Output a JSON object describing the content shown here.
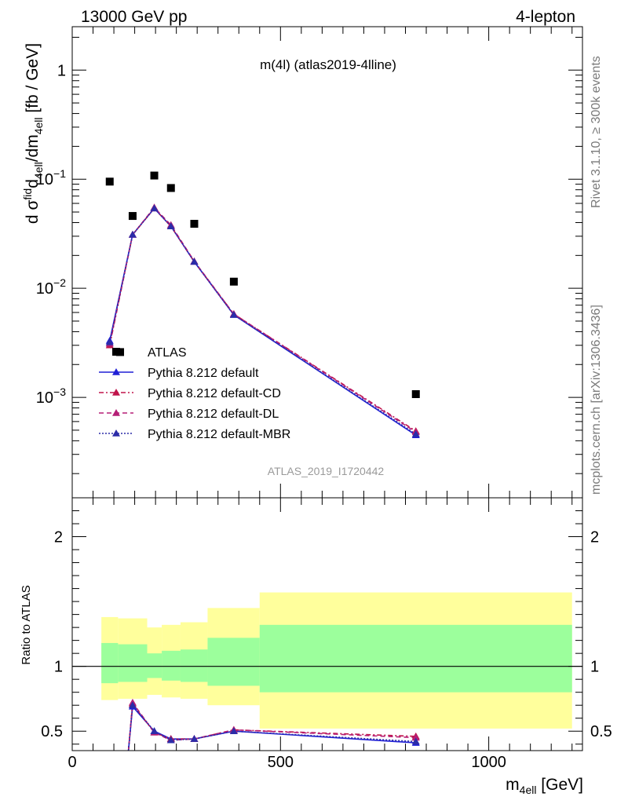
{
  "header": {
    "left": "13000 GeV pp",
    "right": "4-lepton",
    "side_top": "Rivet 3.1.10, ≥ 300k events",
    "side_bottom": "mcplots.cern.ch [arXiv:1306.3436]"
  },
  "chart_data": [
    {
      "type": "scatter",
      "panel": "main",
      "title": "m(4l) (atlas2019-4lline)",
      "ylabel": "d σᶠⁱᵈ₄ₑₗₗ/dm₄ₑₗₗ [fb / GeV]",
      "ylabel_parts": {
        "a": "d σ",
        "fid": "fid",
        "b": "/dm",
        "sub": "4ell",
        "c": " [fb / GeV]"
      },
      "watermark": "ATLAS_2019_I1720442",
      "yscale": "log",
      "xlim": [
        0,
        1225
      ],
      "ylim": [
        0.00012,
        2.5
      ],
      "y_ticks": [
        {
          "value": 1,
          "label": "1"
        },
        {
          "value": 0.1,
          "label": "10",
          "exp": "−1"
        },
        {
          "value": 0.01,
          "label": "10",
          "exp": "−2"
        },
        {
          "value": 0.001,
          "label": "10",
          "exp": "−3"
        }
      ],
      "legend_position": "lower-left",
      "series": [
        {
          "name": "ATLAS",
          "marker": "square",
          "color": "#000000",
          "x": [
            90,
            115,
            145,
            197,
            237,
            293,
            388,
            825
          ],
          "y": [
            0.095,
            0.0026,
            0.046,
            0.108,
            0.083,
            0.039,
            0.0115,
            0.00107
          ]
        },
        {
          "name": "Pythia 8.212 default",
          "marker": "triangle",
          "color": "#1f1fd6",
          "dash": "",
          "x": [
            90,
            145,
            197,
            237,
            293,
            388,
            825
          ],
          "y": [
            0.0033,
            0.031,
            0.054,
            0.037,
            0.0175,
            0.0057,
            0.00045
          ]
        },
        {
          "name": "Pythia 8.212 default-CD",
          "marker": "triangle",
          "color": "#c0144a",
          "dash": "6,3,2,3",
          "x": [
            90,
            145,
            197,
            237,
            293,
            388,
            825
          ],
          "y": [
            0.003,
            0.031,
            0.054,
            0.037,
            0.0175,
            0.0058,
            0.00049
          ]
        },
        {
          "name": "Pythia 8.212 default-DL",
          "marker": "triangle",
          "color": "#b51e76",
          "dash": "6,4",
          "x": [
            90,
            145,
            197,
            237,
            293,
            388,
            825
          ],
          "y": [
            0.0031,
            0.031,
            0.055,
            0.038,
            0.0177,
            0.0058,
            0.00048
          ]
        },
        {
          "name": "Pythia 8.212 default-MBR",
          "marker": "triangle",
          "color": "#2c2ca8",
          "dash": "2,2",
          "x": [
            90,
            145,
            197,
            237,
            293,
            388,
            825
          ],
          "y": [
            0.0032,
            0.031,
            0.054,
            0.037,
            0.0175,
            0.0057,
            0.00046
          ]
        }
      ]
    },
    {
      "type": "line",
      "panel": "ratio",
      "ylabel": "Ratio to ATLAS",
      "xlabel_main": "m",
      "xlabel_sub": "4ell",
      "xlabel_unit": " [GeV]",
      "xlim": [
        0,
        1225
      ],
      "ylim": [
        0.35,
        2.3
      ],
      "x_ticks": [
        {
          "value": 0,
          "label": "0"
        },
        {
          "value": 500,
          "label": "500"
        },
        {
          "value": 1000,
          "label": "1000"
        }
      ],
      "y_ticks": [
        {
          "value": 0.5,
          "label": "0.5"
        },
        {
          "value": 1,
          "label": "1"
        },
        {
          "value": 2,
          "label": "2"
        }
      ],
      "bands": [
        {
          "x0": 70,
          "x1": 110,
          "lo1": 0.87,
          "hi1": 1.18,
          "lo2": 0.74,
          "hi2": 1.38
        },
        {
          "x0": 110,
          "x1": 180,
          "lo1": 0.88,
          "hi1": 1.17,
          "lo2": 0.75,
          "hi2": 1.37
        },
        {
          "x0": 180,
          "x1": 215,
          "lo1": 0.91,
          "hi1": 1.1,
          "lo2": 0.78,
          "hi2": 1.3
        },
        {
          "x0": 215,
          "x1": 260,
          "lo1": 0.89,
          "hi1": 1.12,
          "lo2": 0.76,
          "hi2": 1.32
        },
        {
          "x0": 260,
          "x1": 325,
          "lo1": 0.88,
          "hi1": 1.13,
          "lo2": 0.75,
          "hi2": 1.34
        },
        {
          "x0": 325,
          "x1": 450,
          "lo1": 0.85,
          "hi1": 1.22,
          "lo2": 0.7,
          "hi2": 1.45
        },
        {
          "x0": 450,
          "x1": 1200,
          "lo1": 0.8,
          "hi1": 1.32,
          "lo2": 0.52,
          "hi2": 1.57
        }
      ],
      "series": [
        {
          "name": "Pythia 8.212 default",
          "color": "#1f1fd6",
          "dash": "",
          "x": [
            135,
            145,
            197,
            237,
            293,
            388,
            825
          ],
          "y": [
            0.35,
            0.69,
            0.5,
            0.44,
            0.44,
            0.5,
            0.41
          ]
        },
        {
          "name": "Pythia 8.212 default-CD",
          "color": "#c0144a",
          "dash": "6,3,2,3",
          "x": [
            135,
            145,
            197,
            237,
            293,
            388,
            825
          ],
          "y": [
            0.35,
            0.71,
            0.49,
            0.44,
            0.44,
            0.51,
            0.46
          ]
        },
        {
          "name": "Pythia 8.212 default-DL",
          "color": "#b51e76",
          "dash": "6,4",
          "x": [
            135,
            145,
            197,
            237,
            293,
            388,
            825
          ],
          "y": [
            0.35,
            0.72,
            0.49,
            0.43,
            0.44,
            0.51,
            0.45
          ]
        },
        {
          "name": "Pythia 8.212 default-MBR",
          "color": "#2c2ca8",
          "dash": "2,2",
          "x": [
            135,
            145,
            197,
            237,
            293,
            388,
            825
          ],
          "y": [
            0.35,
            0.7,
            0.5,
            0.43,
            0.44,
            0.5,
            0.42
          ]
        }
      ]
    }
  ],
  "colors": {
    "band_inner": "#9cff9c",
    "band_outer": "#ffff9c"
  }
}
